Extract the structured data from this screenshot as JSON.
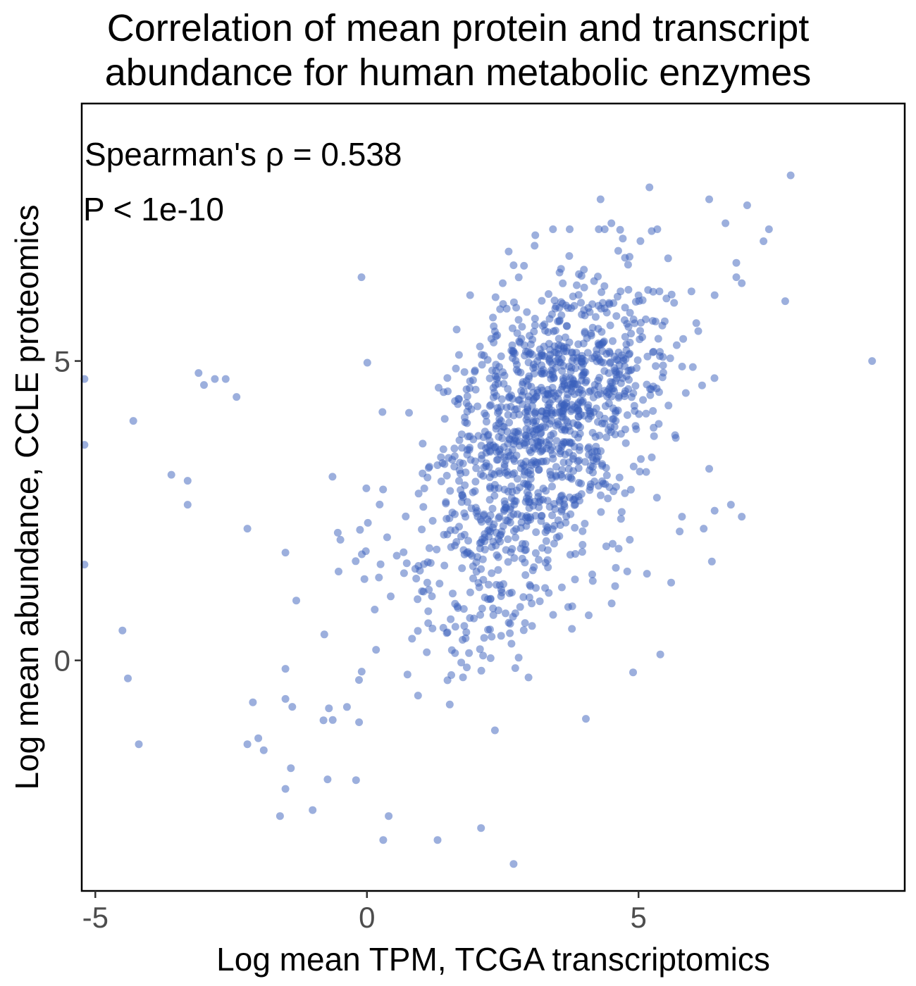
{
  "chart_data": {
    "type": "scatter",
    "title": [
      "Correlation of mean protein and transcript",
      "abundance for human metabolic enzymes"
    ],
    "xlabel": "Log mean TPM, TCGA transcriptomics",
    "ylabel": "Log mean abundance, CCLE proteomics",
    "xlim": [
      -5.25,
      9.9
    ],
    "ylim": [
      -3.85,
      9.3
    ],
    "xticks": [
      -5,
      0,
      5
    ],
    "xtick_labels": [
      "-5",
      "0",
      "5"
    ],
    "yticks": [
      0,
      5
    ],
    "ytick_labels": [
      "0",
      "5"
    ],
    "annotations": [
      "Spearman's ρ = 0.538",
      "P < 1e-10"
    ],
    "point_color": "#3a5fbb",
    "legend": "none",
    "grid": false,
    "n_random_points": 1300,
    "x": [
      9.3,
      7.8,
      5.2,
      6.3,
      7.0,
      7.4,
      6.6,
      7.3,
      6.8,
      6.9,
      7.7,
      6.4,
      6.1,
      6.0,
      6.3,
      6.9,
      6.7,
      4.3,
      4.5,
      3.1,
      2.7,
      2.5,
      1.9,
      -0.1,
      -3.1,
      -3.3,
      -3.6,
      -4.3,
      -4.5,
      -4.2,
      -5.2,
      -5.2,
      -5.2,
      -2.8,
      -2.6,
      -2.4,
      -3.0,
      -2.2,
      -1.5,
      -1.3,
      -0.8,
      -0.7,
      0.3,
      2.7,
      2.1,
      1.3,
      0.4,
      -1.0,
      -1.4,
      -0.2,
      -2.2,
      -1.6,
      -2.0,
      -1.9,
      -2.1,
      -3.3,
      -4.4,
      5.4,
      5.8,
      6.2,
      6.4,
      5.6,
      4.9
    ],
    "y": [
      5.0,
      8.1,
      7.9,
      7.7,
      7.6,
      7.2,
      7.3,
      7.0,
      6.4,
      6.3,
      6.0,
      6.1,
      5.5,
      4.9,
      3.2,
      2.4,
      2.6,
      7.7,
      7.3,
      7.1,
      6.6,
      6.3,
      6.1,
      6.4,
      4.8,
      3.0,
      3.1,
      4.0,
      0.5,
      -1.4,
      4.7,
      3.6,
      1.6,
      4.7,
      4.7,
      4.4,
      4.6,
      2.2,
      1.8,
      1.0,
      -1.0,
      -0.8,
      -3.0,
      -3.4,
      -2.8,
      -3.0,
      -2.6,
      -2.5,
      -1.8,
      -2.0,
      -1.4,
      -2.6,
      -1.3,
      -1.5,
      -0.7,
      2.6,
      -0.3,
      0.1,
      2.4,
      2.2,
      2.5,
      1.3,
      -0.2
    ]
  }
}
